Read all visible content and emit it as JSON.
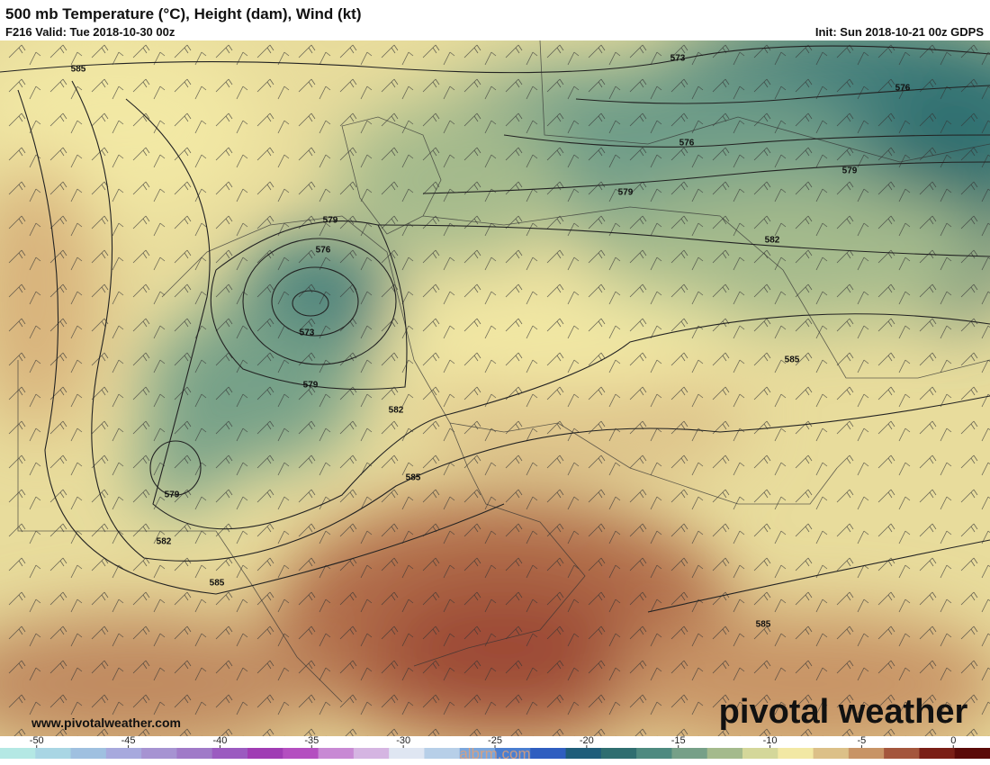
{
  "header": {
    "title": "500 mb Temperature (°C), Height (dam), Wind (kt)",
    "valid": "F216 Valid: Tue 2018-10-30 00z",
    "init": "Init: Sun 2018-10-21 00z GDPS"
  },
  "contour_labels": [
    585,
    573,
    576,
    576,
    579,
    579,
    579,
    576,
    582,
    573,
    579,
    585,
    582,
    585,
    579,
    582,
    585,
    585
  ],
  "footer": {
    "website": "www.pivotalweather.com",
    "logo": "pivotal weather",
    "watermark": "albrm.com"
  },
  "colorbar": {
    "range": [
      -52,
      2
    ],
    "ticks": [
      -50,
      -45,
      -40,
      -35,
      -30,
      -25,
      -20,
      -15,
      -10,
      -5,
      0
    ],
    "colors": [
      "#b4e8e4",
      "#a9d6e4",
      "#9fc0e0",
      "#a7a9dd",
      "#a693d2",
      "#a07ac8",
      "#9b5bc0",
      "#a03cb4",
      "#b44fc0",
      "#c889d4",
      "#d5b5e2",
      "#dfe6f2",
      "#b7cfe8",
      "#7ba6dc",
      "#4a7ed0",
      "#2f5ec0",
      "#1f5d7a",
      "#2f6e70",
      "#4e8a80",
      "#76a088",
      "#a4ba8c",
      "#d4d79a",
      "#f2e8a4",
      "#dcc088",
      "#c89466",
      "#a4563c",
      "#7a1f16",
      "#5a0a08"
    ]
  }
}
